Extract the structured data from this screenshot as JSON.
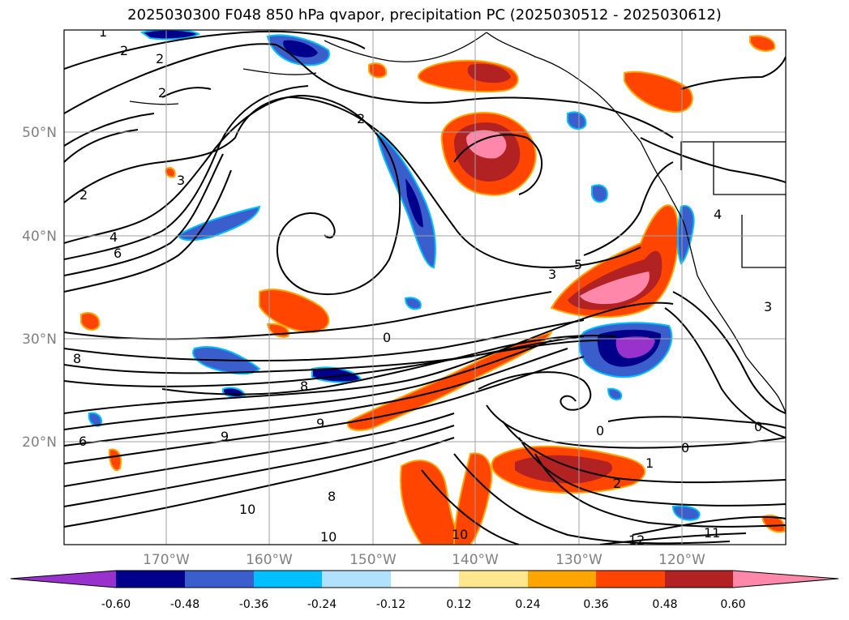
{
  "title": "2025030300 F048 850 hPa qvapor, precipitation PC (2025030512 - 2025030612)",
  "map": {
    "lat_ticks": [
      "50°N",
      "40°N",
      "30°N",
      "20°N"
    ],
    "lon_ticks": [
      "170°W",
      "160°W",
      "150°W",
      "140°W",
      "130°W",
      "120°W"
    ],
    "contour_labels": [
      "1",
      "2",
      "2",
      "2",
      "2",
      "3",
      "4",
      "6",
      "3",
      "2",
      "0",
      "8",
      "8",
      "9",
      "6",
      "0",
      "0",
      "0",
      "1",
      "2",
      "10",
      "10",
      "12",
      "11",
      "8",
      "4",
      "5",
      "3",
      "9",
      "10"
    ],
    "grid": true
  },
  "colorbar": {
    "labels": [
      "-0.60",
      "-0.48",
      "-0.36",
      "-0.24",
      "-0.12",
      "0.12",
      "0.24",
      "0.36",
      "0.48",
      "0.60"
    ],
    "colors": [
      "#9932cc",
      "#00008b",
      "#3a5fcd",
      "#00bfff",
      "#b0e2ff",
      "#ffffff",
      "#ffe78f",
      "#ffa500",
      "#ff4500",
      "#b22222",
      "#ff88aa"
    ],
    "extend": "both"
  }
}
